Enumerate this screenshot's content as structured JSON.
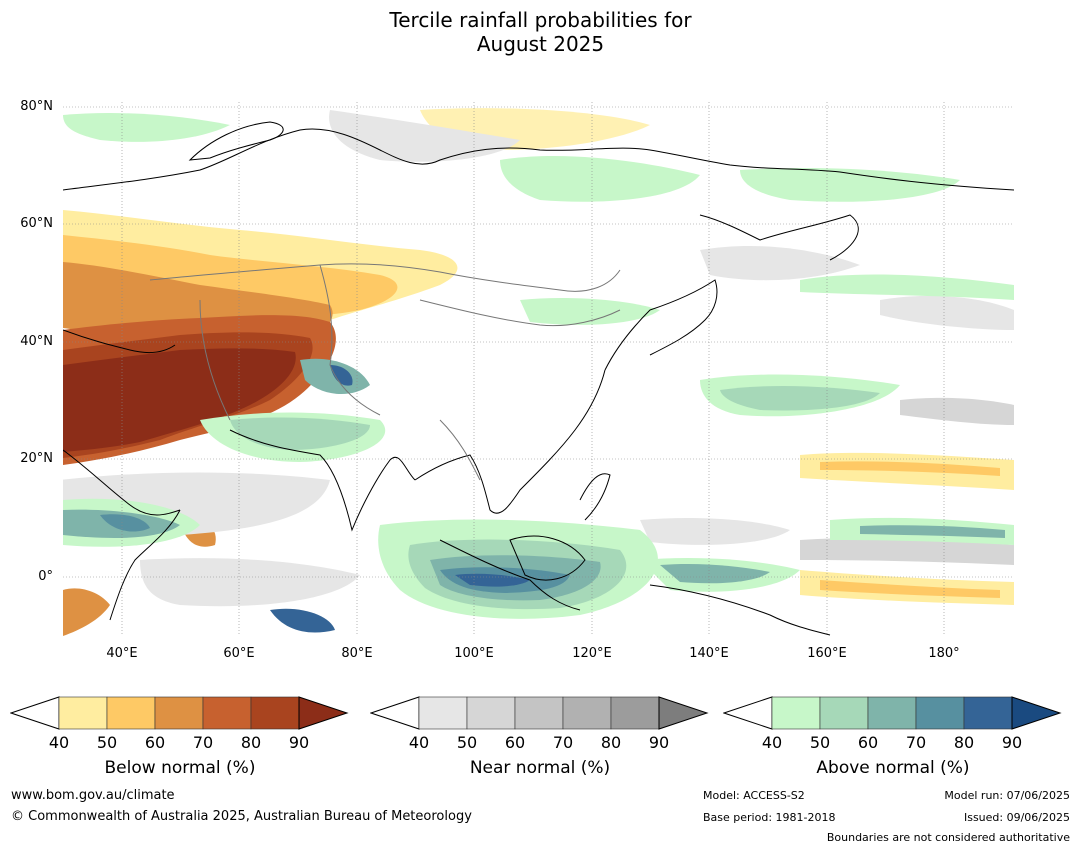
{
  "title_line1": "Tercile rainfall probabilities for",
  "title_line2": "August 2025",
  "map": {
    "lat_labels": [
      "80°N",
      "60°N",
      "40°N",
      "20°N",
      "0°"
    ],
    "lon_labels": [
      "40°E",
      "60°E",
      "80°E",
      "100°E",
      "120°E",
      "140°E",
      "160°E",
      "180°"
    ],
    "lon_range": [
      30,
      191
    ],
    "lat_range": [
      -10,
      81
    ]
  },
  "colorbars": [
    {
      "title": "Below normal (%)",
      "ticks": [
        "40",
        "50",
        "60",
        "70",
        "80",
        "90"
      ],
      "colors": [
        "#ffffff",
        "#ffeda0",
        "#fec965",
        "#de9143",
        "#c7612f",
        "#a9441f",
        "#8c2d18"
      ]
    },
    {
      "title": "Near normal (%)",
      "ticks": [
        "40",
        "50",
        "60",
        "70",
        "80",
        "90"
      ],
      "colors": [
        "#ffffff",
        "#e6e6e6",
        "#d6d6d6",
        "#c4c4c4",
        "#b1b1b1",
        "#9c9c9c",
        "#7d7d7d"
      ]
    },
    {
      "title": "Above normal (%)",
      "ticks": [
        "40",
        "50",
        "60",
        "70",
        "80",
        "90"
      ],
      "colors": [
        "#ffffff",
        "#c7f7c9",
        "#a6d8b8",
        "#7fb4aa",
        "#5790a0",
        "#346496",
        "#1a4a80"
      ]
    }
  ],
  "footer": {
    "url": "www.bom.gov.au/climate",
    "copyright": "© Commonwealth of Australia 2025, Australian Bureau of Meteorology",
    "model": "Model: ACCESS-S2",
    "base_period": "Base period: 1981-2018",
    "model_run": "Model run: 07/06/2025",
    "issued": "Issued: 09/06/2025",
    "boundaries": "Boundaries are not considered authoritative"
  }
}
